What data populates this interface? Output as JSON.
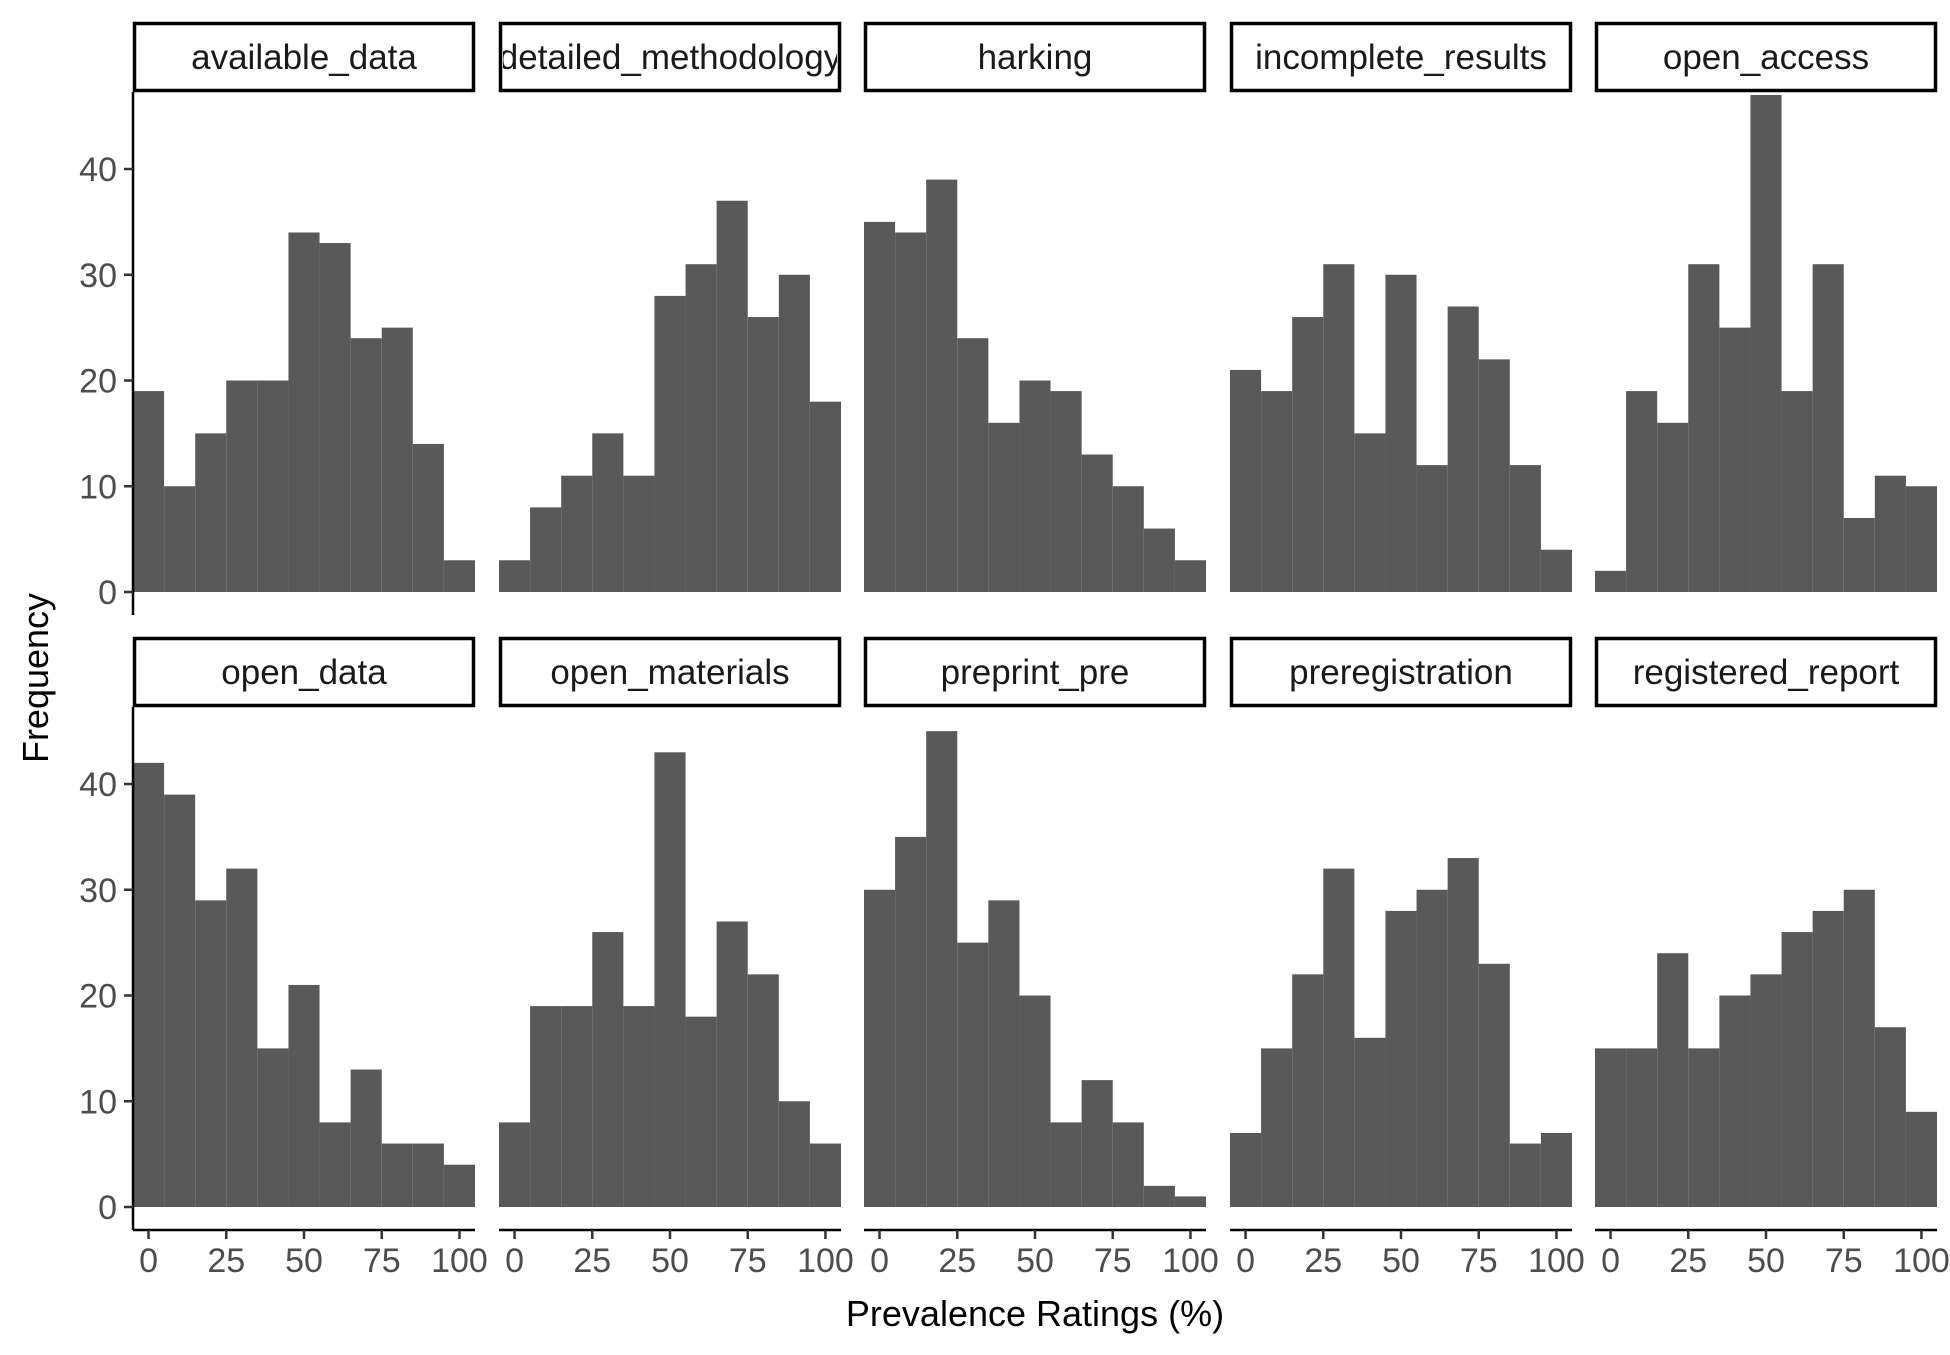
{
  "chart_data": {
    "type": "bar",
    "layout": "facet-grid-2x5",
    "xlabel": "Prevalence Ratings (%)",
    "ylabel": "Frequency",
    "xlim": [
      -5,
      105
    ],
    "ylim": [
      0,
      47
    ],
    "x_ticks": [
      0,
      25,
      50,
      75,
      100
    ],
    "y_ticks": [
      0,
      10,
      20,
      30,
      40
    ],
    "x_tick_labels": [
      "0",
      "25",
      "50",
      "75",
      "100"
    ],
    "y_tick_labels": [
      "0",
      "10",
      "20",
      "30",
      "40"
    ],
    "bin_width": 10,
    "bin_centers": [
      0,
      10,
      20,
      30,
      40,
      50,
      60,
      70,
      80,
      90,
      100
    ],
    "bar_color": "#595959",
    "grid": false,
    "series": [
      {
        "name": "available_data",
        "values": [
          19,
          10,
          15,
          20,
          20,
          34,
          33,
          24,
          25,
          14,
          3
        ]
      },
      {
        "name": "detailed_methodology",
        "values": [
          3,
          8,
          11,
          15,
          11,
          28,
          31,
          37,
          26,
          30,
          18
        ]
      },
      {
        "name": "harking",
        "values": [
          35,
          34,
          39,
          24,
          16,
          20,
          19,
          13,
          10,
          6,
          3
        ]
      },
      {
        "name": "incomplete_results",
        "values": [
          21,
          19,
          26,
          31,
          15,
          30,
          12,
          27,
          22,
          12,
          4
        ]
      },
      {
        "name": "open_access",
        "values": [
          2,
          19,
          16,
          31,
          25,
          47,
          19,
          31,
          7,
          11,
          10
        ]
      },
      {
        "name": "open_data",
        "values": [
          42,
          39,
          29,
          32,
          15,
          21,
          8,
          13,
          6,
          6,
          4
        ]
      },
      {
        "name": "open_materials",
        "values": [
          8,
          19,
          19,
          26,
          19,
          43,
          18,
          27,
          22,
          10,
          6
        ]
      },
      {
        "name": "preprint_pre",
        "values": [
          30,
          35,
          45,
          25,
          29,
          20,
          8,
          12,
          8,
          2,
          1
        ]
      },
      {
        "name": "preregistration",
        "values": [
          7,
          15,
          22,
          32,
          16,
          28,
          30,
          33,
          23,
          6,
          7
        ]
      },
      {
        "name": "registered_report",
        "values": [
          15,
          15,
          24,
          15,
          20,
          22,
          26,
          28,
          30,
          17,
          9
        ]
      }
    ]
  }
}
